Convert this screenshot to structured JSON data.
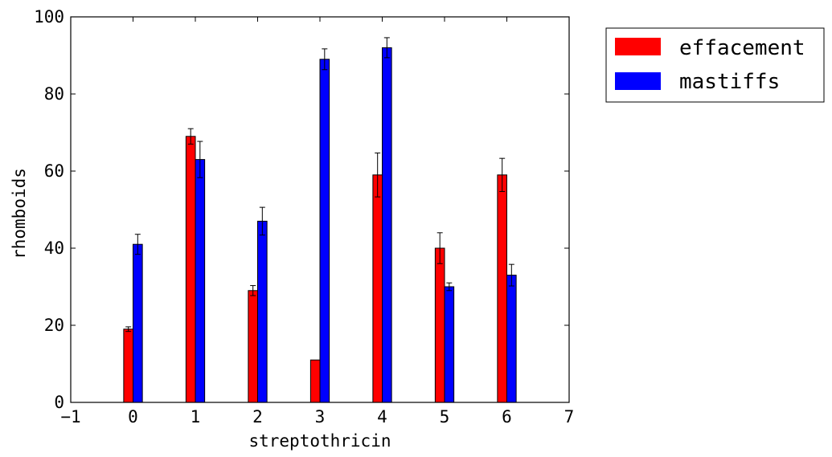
{
  "chart_data": {
    "type": "bar",
    "title": "",
    "xlabel": "streptothricin",
    "ylabel": "rhomboids",
    "xlim": [
      -1,
      7
    ],
    "ylim": [
      0,
      100
    ],
    "xticks": [
      -1,
      0,
      1,
      2,
      3,
      4,
      5,
      6,
      7
    ],
    "yticks": [
      0,
      20,
      40,
      60,
      80,
      100
    ],
    "x": [
      0,
      1,
      2,
      3,
      4,
      5,
      6
    ],
    "series": [
      {
        "name": "effacement",
        "color": "#ff0000",
        "values": [
          19,
          69,
          29,
          11,
          59,
          40,
          59
        ],
        "errors": [
          0.6,
          2.0,
          1.3,
          0,
          5.7,
          4.0,
          4.3
        ]
      },
      {
        "name": "mastiffs",
        "color": "#0000ff",
        "values": [
          41,
          63,
          47,
          89,
          92,
          30,
          33
        ],
        "errors": [
          2.6,
          4.7,
          3.6,
          2.7,
          2.6,
          1.0,
          2.8
        ]
      }
    ],
    "grid": false,
    "legend_position": "outside-top-right"
  }
}
